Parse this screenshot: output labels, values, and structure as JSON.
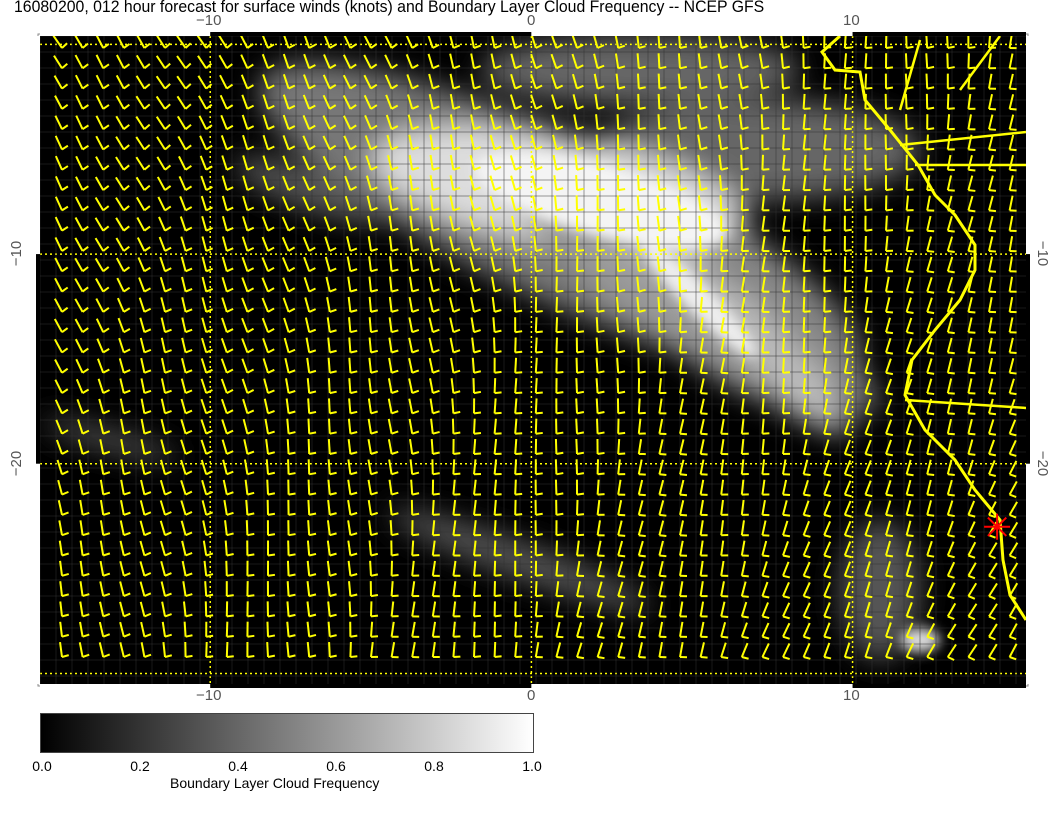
{
  "title": "16080200, 012 hour forecast for surface winds (knots) and Boundary Layer Cloud Frequency -- NCEP GFS",
  "map": {
    "lon_range": [
      -15.3,
      15.4
    ],
    "lat_range": [
      -30.5,
      0.4
    ],
    "x_tick_labels": [
      "−10",
      "0",
      "10"
    ],
    "y_tick_labels": [
      "−10",
      "−20"
    ],
    "background_color": "#000000",
    "wind_barb_color": "#ffff00",
    "coastline_color": "#ffff00",
    "gridline_color": "#ffff00",
    "marker": {
      "icon": "red-star-icon",
      "color": "#ff0000",
      "lon": 14.5,
      "lat": -23
    }
  },
  "colorbar": {
    "title": "Boundary Layer Cloud Frequency",
    "ticks": [
      "0.0",
      "0.2",
      "0.4",
      "0.6",
      "0.8",
      "1.0"
    ],
    "range": [
      0.0,
      1.0
    ],
    "colormap": [
      "#000000",
      "#ffffff"
    ]
  }
}
